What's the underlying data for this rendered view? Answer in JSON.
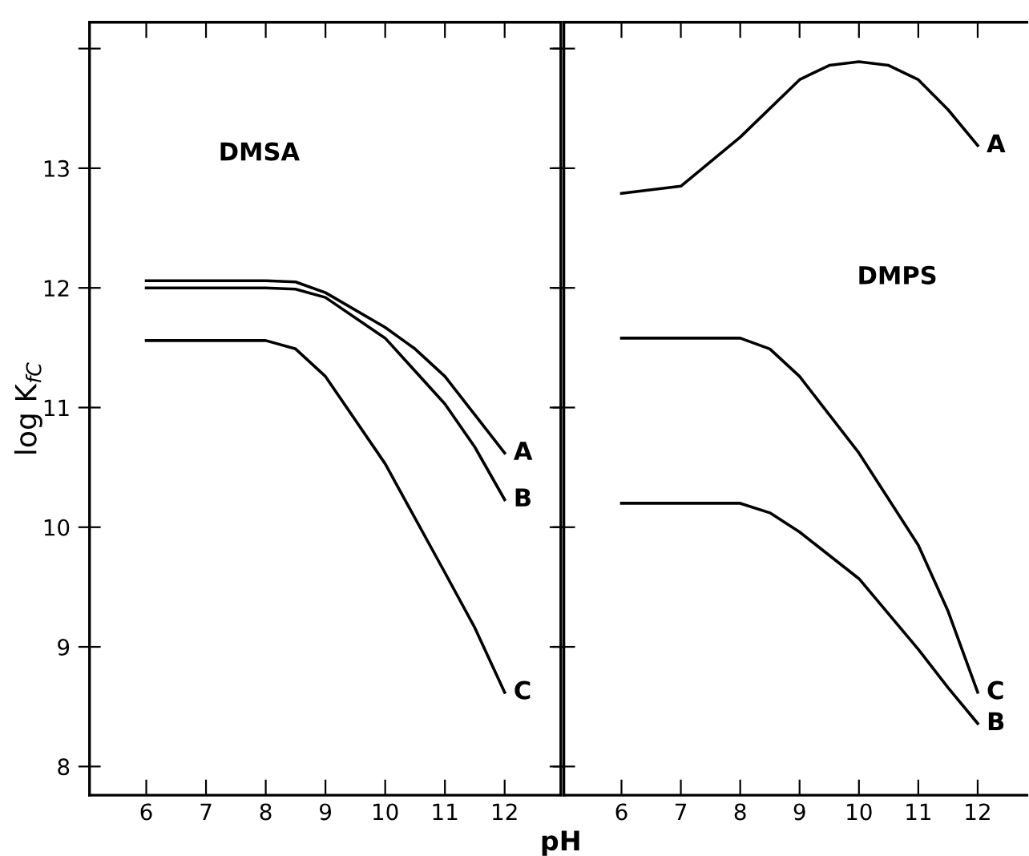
{
  "chart_data": [
    {
      "type": "line",
      "title": "DMSA",
      "xlabel": "pH",
      "ylabel": "log K$_{fC}$",
      "xlim": [
        5.05,
        12.94
      ],
      "ylim": [
        7.76,
        14.22
      ],
      "xticks": [
        6,
        7,
        8,
        9,
        10,
        11,
        12
      ],
      "yticks": [
        8,
        9,
        10,
        11,
        12,
        13,
        {
          "value": 14,
          "label": null
        }
      ],
      "grid": false,
      "legend": false,
      "marker": "none",
      "line_style": "solid",
      "series": [
        {
          "name": "A",
          "color": "#000000",
          "x": [
            6,
            7,
            8,
            8.5,
            9,
            10,
            10.5,
            11,
            11.5,
            12
          ],
          "values": [
            12.06,
            12.06,
            12.06,
            12.05,
            11.96,
            11.67,
            11.49,
            11.26,
            10.94,
            10.62
          ]
        },
        {
          "name": "B",
          "color": "#000000",
          "x": [
            6,
            7,
            8,
            8.5,
            9,
            10,
            11,
            11.5,
            12
          ],
          "values": [
            12.0,
            12.0,
            12.0,
            11.99,
            11.92,
            11.58,
            11.03,
            10.67,
            10.23
          ]
        },
        {
          "name": "C",
          "color": "#000000",
          "x": [
            6,
            7,
            8,
            8.5,
            9,
            10,
            11,
            11.5,
            12
          ],
          "values": [
            11.56,
            11.56,
            11.56,
            11.49,
            11.26,
            10.53,
            9.62,
            9.16,
            8.62
          ]
        }
      ]
    },
    {
      "type": "line",
      "title": "DMPS",
      "xlim": [
        5.03,
        12.83
      ],
      "ylim": [
        7.76,
        14.22
      ],
      "xticks": [
        6,
        7,
        8,
        9,
        10,
        11,
        12
      ],
      "yticks": [
        {
          "value": 8,
          "label": null
        },
        {
          "value": 9,
          "label": null
        },
        {
          "value": 10,
          "label": null
        },
        {
          "value": 11,
          "label": null
        },
        {
          "value": 12,
          "label": null
        },
        {
          "value": 13,
          "label": null
        },
        {
          "value": 14,
          "label": null
        }
      ],
      "tick_labels": "x",
      "grid": false,
      "legend": false,
      "marker": "none",
      "line_style": "solid",
      "series": [
        {
          "name": "A",
          "color": "#000000",
          "x": [
            6,
            7,
            8,
            9,
            9.5,
            10,
            10.5,
            11,
            11.5,
            12
          ],
          "values": [
            12.79,
            12.85,
            13.26,
            13.74,
            13.86,
            13.89,
            13.86,
            13.74,
            13.49,
            13.19
          ]
        },
        {
          "name": "B",
          "color": "#000000",
          "x": [
            6,
            7,
            8,
            8.5,
            9,
            10,
            11,
            11.5,
            12
          ],
          "values": [
            10.2,
            10.2,
            10.2,
            10.12,
            9.96,
            9.57,
            8.98,
            8.66,
            8.36
          ]
        },
        {
          "name": "C",
          "color": "#000000",
          "x": [
            6,
            7,
            8,
            8.5,
            9,
            10,
            11,
            11.5,
            12
          ],
          "values": [
            11.58,
            11.58,
            11.58,
            11.49,
            11.26,
            10.62,
            9.85,
            9.3,
            8.62
          ]
        }
      ]
    }
  ]
}
